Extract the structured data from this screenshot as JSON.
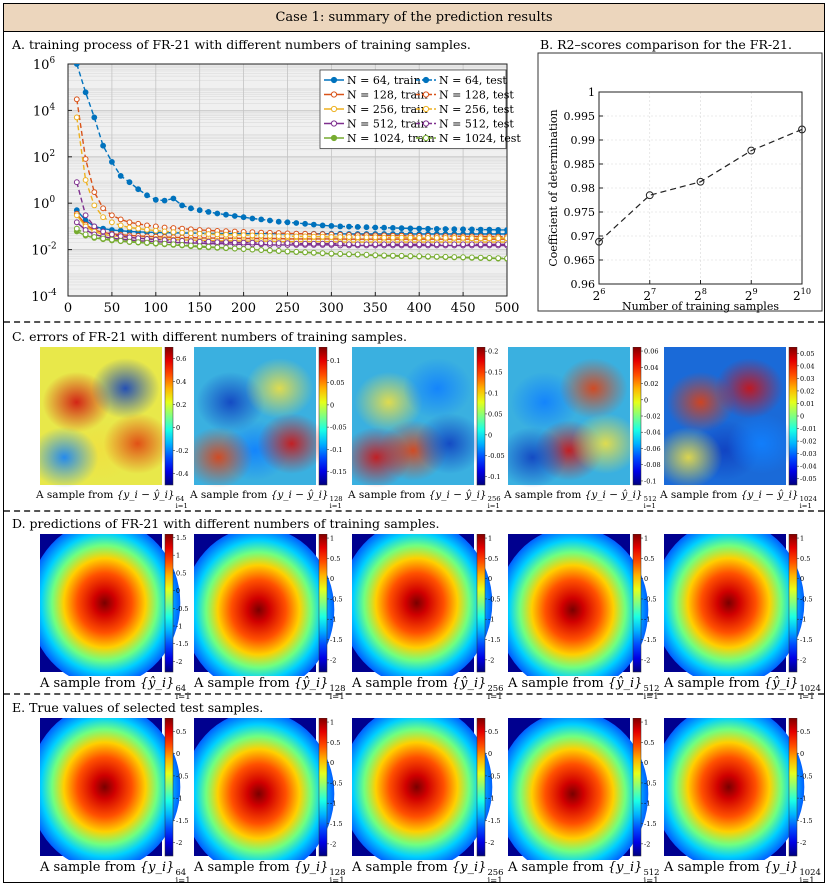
{
  "header": {
    "title": "Case 1: summary of the prediction results"
  },
  "sections": {
    "a": "A. training process of FR-21 with different numbers of training samples.",
    "b": "B. R2–scores comparison for the FR-21.",
    "c": "C. errors of FR-21 with different numbers of training samples.",
    "d": "D. predictions of FR-21 with different numbers of training samples.",
    "e": "E. True values of selected test samples."
  },
  "captions": {
    "prefix": "A sample from",
    "sizes": [
      "64",
      "128",
      "256",
      "512",
      "1024"
    ],
    "index_var": "i=1",
    "c_expr": "{y_i − ŷ_i}",
    "d_expr": "{ŷ_i}",
    "e_expr": "{y_i}"
  },
  "chart_data": [
    {
      "id": "A",
      "type": "line",
      "title": "training process of FR-21 with different numbers of training samples",
      "yscale": "log",
      "xlim": [
        0,
        500
      ],
      "ylim": [
        0.0001,
        1000000.0
      ],
      "xticks": [
        0,
        50,
        100,
        150,
        200,
        250,
        300,
        350,
        400,
        450,
        500
      ],
      "ytick_labels": [
        [
          "10",
          "-4"
        ],
        [
          "10",
          "-2"
        ],
        [
          "10",
          "0"
        ],
        [
          "10",
          "2"
        ],
        [
          "10",
          "4"
        ],
        [
          "10",
          "6"
        ]
      ],
      "ytick_values": [
        0.0001,
        0.01,
        1,
        100.0,
        10000.0,
        1000000.0
      ],
      "grid": true,
      "legend_position": "top-right",
      "x": [
        10,
        20,
        30,
        40,
        50,
        60,
        70,
        80,
        90,
        100,
        110,
        120,
        130,
        140,
        150,
        160,
        170,
        180,
        190,
        200,
        210,
        220,
        230,
        240,
        250,
        260,
        270,
        280,
        290,
        300,
        310,
        320,
        330,
        340,
        350,
        360,
        370,
        380,
        390,
        400,
        410,
        420,
        430,
        440,
        450,
        460,
        470,
        480,
        490,
        500
      ],
      "series": [
        {
          "name": "N = 64, train",
          "style": "solid",
          "color": "#0072bd",
          "marker": "filled",
          "values": [
            0.5,
            0.18,
            0.1,
            0.08,
            0.07,
            0.065,
            0.06,
            0.058,
            0.056,
            0.055,
            0.054,
            0.053,
            0.052,
            0.052,
            0.051,
            0.05,
            0.05,
            0.05,
            0.05,
            0.049,
            0.049,
            0.049,
            0.049,
            0.048,
            0.048,
            0.048,
            0.048,
            0.048,
            0.048,
            0.048,
            0.048,
            0.047,
            0.047,
            0.047,
            0.047,
            0.047,
            0.047,
            0.047,
            0.047,
            0.047,
            0.047,
            0.047,
            0.047,
            0.047,
            0.047,
            0.047,
            0.047,
            0.047,
            0.047,
            0.047
          ]
        },
        {
          "name": "N = 64, test",
          "style": "dashed",
          "color": "#0072bd",
          "marker": "filled",
          "values": [
            1000000,
            60000,
            5000,
            300,
            60,
            15,
            8,
            4,
            2.2,
            1.4,
            1.3,
            1.6,
            0.8,
            0.6,
            0.5,
            0.42,
            0.36,
            0.32,
            0.28,
            0.25,
            0.22,
            0.2,
            0.18,
            0.16,
            0.15,
            0.14,
            0.13,
            0.12,
            0.11,
            0.105,
            0.1,
            0.098,
            0.095,
            0.092,
            0.09,
            0.088,
            0.086,
            0.084,
            0.082,
            0.08,
            0.079,
            0.078,
            0.077,
            0.076,
            0.075,
            0.074,
            0.073,
            0.072,
            0.071,
            0.07
          ]
        },
        {
          "name": "N = 128, train",
          "style": "solid",
          "color": "#d95319",
          "marker": "hollow",
          "values": [
            0.35,
            0.12,
            0.07,
            0.055,
            0.048,
            0.044,
            0.041,
            0.039,
            0.037,
            0.036,
            0.035,
            0.034,
            0.033,
            0.033,
            0.032,
            0.032,
            0.031,
            0.031,
            0.031,
            0.03,
            0.03,
            0.03,
            0.03,
            0.03,
            0.029,
            0.029,
            0.029,
            0.029,
            0.029,
            0.029,
            0.029,
            0.028,
            0.028,
            0.028,
            0.028,
            0.028,
            0.028,
            0.028,
            0.028,
            0.028,
            0.028,
            0.028,
            0.028,
            0.028,
            0.028,
            0.028,
            0.028,
            0.028,
            0.028,
            0.028
          ]
        },
        {
          "name": "N = 128, test",
          "style": "dashed",
          "color": "#d95319",
          "marker": "hollow",
          "values": [
            30000,
            80,
            3,
            0.6,
            0.3,
            0.2,
            0.15,
            0.13,
            0.11,
            0.1,
            0.09,
            0.085,
            0.08,
            0.075,
            0.07,
            0.067,
            0.064,
            0.062,
            0.06,
            0.058,
            0.056,
            0.054,
            0.053,
            0.052,
            0.05,
            0.049,
            0.048,
            0.047,
            0.046,
            0.045,
            0.044,
            0.043,
            0.042,
            0.042,
            0.041,
            0.041,
            0.04,
            0.04,
            0.039,
            0.039,
            0.039,
            0.038,
            0.038,
            0.038,
            0.037,
            0.037,
            0.037,
            0.037,
            0.036,
            0.036
          ]
        },
        {
          "name": "N = 256, train",
          "style": "solid",
          "color": "#edb120",
          "marker": "hollow",
          "values": [
            0.3,
            0.1,
            0.06,
            0.045,
            0.04,
            0.036,
            0.033,
            0.031,
            0.03,
            0.029,
            0.028,
            0.027,
            0.026,
            0.026,
            0.025,
            0.025,
            0.024,
            0.024,
            0.024,
            0.023,
            0.023,
            0.023,
            0.023,
            0.022,
            0.022,
            0.022,
            0.022,
            0.022,
            0.022,
            0.022,
            0.021,
            0.021,
            0.021,
            0.021,
            0.021,
            0.021,
            0.021,
            0.021,
            0.021,
            0.021,
            0.021,
            0.021,
            0.021,
            0.021,
            0.021,
            0.021,
            0.021,
            0.021,
            0.021,
            0.021
          ]
        },
        {
          "name": "N = 256, test",
          "style": "dashed",
          "color": "#edb120",
          "marker": "hollow",
          "values": [
            5000,
            10,
            0.8,
            0.25,
            0.15,
            0.11,
            0.09,
            0.08,
            0.072,
            0.066,
            0.061,
            0.057,
            0.054,
            0.051,
            0.049,
            0.047,
            0.045,
            0.044,
            0.043,
            0.042,
            0.041,
            0.04,
            0.039,
            0.038,
            0.038,
            0.037,
            0.037,
            0.036,
            0.036,
            0.035,
            0.035,
            0.035,
            0.034,
            0.034,
            0.034,
            0.033,
            0.033,
            0.033,
            0.033,
            0.032,
            0.032,
            0.032,
            0.032,
            0.032,
            0.032,
            0.031,
            0.031,
            0.031,
            0.031,
            0.031
          ]
        },
        {
          "name": "N = 512, train",
          "style": "solid",
          "color": "#7e2f8e",
          "marker": "hollow",
          "values": [
            0.15,
            0.07,
            0.045,
            0.036,
            0.031,
            0.028,
            0.026,
            0.024,
            0.023,
            0.022,
            0.021,
            0.02,
            0.02,
            0.019,
            0.019,
            0.018,
            0.018,
            0.018,
            0.017,
            0.017,
            0.017,
            0.017,
            0.016,
            0.016,
            0.016,
            0.016,
            0.016,
            0.016,
            0.016,
            0.016,
            0.015,
            0.015,
            0.015,
            0.015,
            0.015,
            0.015,
            0.015,
            0.015,
            0.015,
            0.015,
            0.015,
            0.015,
            0.015,
            0.015,
            0.015,
            0.015,
            0.015,
            0.015,
            0.015,
            0.015
          ]
        },
        {
          "name": "N = 512, test",
          "style": "dashed",
          "color": "#7e2f8e",
          "marker": "hollow",
          "values": [
            8,
            0.3,
            0.1,
            0.06,
            0.045,
            0.038,
            0.034,
            0.031,
            0.029,
            0.027,
            0.026,
            0.025,
            0.024,
            0.023,
            0.022,
            0.022,
            0.021,
            0.021,
            0.02,
            0.02,
            0.02,
            0.019,
            0.019,
            0.019,
            0.019,
            0.018,
            0.018,
            0.018,
            0.018,
            0.018,
            0.018,
            0.017,
            0.017,
            0.017,
            0.017,
            0.017,
            0.017,
            0.017,
            0.017,
            0.017,
            0.017,
            0.017,
            0.017,
            0.017,
            0.017,
            0.017,
            0.017,
            0.017,
            0.017,
            0.017
          ]
        },
        {
          "name": "N = 1024, train",
          "style": "solid",
          "color": "#77ac30",
          "marker": "filled",
          "values": [
            0.06,
            0.04,
            0.032,
            0.028,
            0.025,
            0.023,
            0.021,
            0.02,
            0.019,
            0.018,
            0.017,
            0.016,
            0.015,
            0.014,
            0.013,
            0.0125,
            0.012,
            0.0115,
            0.011,
            0.0105,
            0.01,
            0.0095,
            0.009,
            0.0086,
            0.0082,
            0.0078,
            0.0075,
            0.0072,
            0.0069,
            0.0066,
            0.0064,
            0.0062,
            0.006,
            0.0058,
            0.0056,
            0.0054,
            0.0053,
            0.0052,
            0.0051,
            0.005,
            0.0049,
            0.0048,
            0.0047,
            0.0046,
            0.0045,
            0.0044,
            0.0043,
            0.0042,
            0.0041,
            0.004
          ]
        },
        {
          "name": "N = 1024, test",
          "style": "dashed",
          "color": "#77ac30",
          "marker": "hollow",
          "values": [
            0.08,
            0.045,
            0.035,
            0.03,
            0.027,
            0.024,
            0.022,
            0.021,
            0.02,
            0.019,
            0.018,
            0.017,
            0.016,
            0.015,
            0.014,
            0.0132,
            0.0125,
            0.0118,
            0.0112,
            0.0106,
            0.0101,
            0.0096,
            0.0092,
            0.0088,
            0.0084,
            0.008,
            0.0077,
            0.0074,
            0.0071,
            0.0068,
            0.0066,
            0.0064,
            0.0062,
            0.006,
            0.0058,
            0.0056,
            0.0055,
            0.0054,
            0.0053,
            0.0052,
            0.0051,
            0.005,
            0.0049,
            0.0048,
            0.0047,
            0.0046,
            0.0045,
            0.0044,
            0.0043,
            0.0042
          ]
        }
      ]
    },
    {
      "id": "B",
      "type": "line",
      "title": "R2–scores comparison for the FR-21",
      "xlabel": "Number of training samples",
      "ylabel": "Coefficient of determination",
      "xtick_labels": [
        [
          "2",
          "6"
        ],
        [
          "2",
          "7"
        ],
        [
          "2",
          "8"
        ],
        [
          "2",
          "9"
        ],
        [
          "2",
          "10"
        ]
      ],
      "categories": [
        "64",
        "128",
        "256",
        "512",
        "1024"
      ],
      "values": [
        0.9688,
        0.9785,
        0.9813,
        0.9878,
        0.9922
      ],
      "ylim": [
        0.96,
        1
      ],
      "yticks": [
        "0.96",
        "0.965",
        "0.97",
        "0.975",
        "0.98",
        "0.985",
        "0.99",
        "0.995",
        "1"
      ],
      "grid": true
    },
    {
      "id": "C",
      "type": "heatmap",
      "colorbars": [
        {
          "ticks": [
            "0.6",
            "0.4",
            "0.2",
            "0",
            "-0.2",
            "-0.4"
          ],
          "min": -0.5,
          "max": 0.7
        },
        {
          "ticks": [
            "0.1",
            "0.05",
            "0",
            "-0.05",
            "-0.1",
            "-0.15"
          ],
          "min": -0.18,
          "max": 0.13
        },
        {
          "ticks": [
            "0.2",
            "0.15",
            "0.1",
            "0.05",
            "0",
            "-0.05",
            "-0.1"
          ],
          "min": -0.12,
          "max": 0.21
        },
        {
          "ticks": [
            "0.06",
            "0.04",
            "0.02",
            "0",
            "-0.02",
            "-0.04",
            "-0.06",
            "-0.08",
            "-0.1"
          ],
          "min": -0.105,
          "max": 0.065
        },
        {
          "ticks": [
            "0.05",
            "0.04",
            "0.03",
            "0.02",
            "0.01",
            "0",
            "-0.01",
            "-0.02",
            "-0.03",
            "-0.04",
            "-0.05"
          ],
          "min": -0.055,
          "max": 0.055
        }
      ]
    },
    {
      "id": "D",
      "type": "heatmap",
      "colorbars": [
        {
          "ticks": [
            "1.5",
            "1",
            "0.5",
            "0",
            "-0.5",
            "-1",
            "-1.5",
            "-2"
          ],
          "min": -2.3,
          "max": 1.6
        },
        {
          "ticks": [
            "1",
            "0.5",
            "0",
            "-0.5",
            "-1",
            "-1.5",
            "-2"
          ],
          "min": -2.3,
          "max": 1.1
        },
        {
          "ticks": [
            "1",
            "0.5",
            "0",
            "-0.5",
            "-1",
            "-1.5",
            "-2"
          ],
          "min": -2.3,
          "max": 1.1
        },
        {
          "ticks": [
            "1",
            "0.5",
            "0",
            "-0.5",
            "-1",
            "-1.5",
            "-2"
          ],
          "min": -2.3,
          "max": 1.1
        },
        {
          "ticks": [
            "1",
            "0.5",
            "0",
            "-0.5",
            "-1",
            "-1.5",
            "-2"
          ],
          "min": -2.3,
          "max": 1.1
        }
      ]
    },
    {
      "id": "E",
      "type": "heatmap",
      "colorbars": [
        {
          "ticks": [
            "0.5",
            "0",
            "-0.5",
            "-1",
            "-1.5",
            "-2"
          ],
          "min": -2.3,
          "max": 0.8
        },
        {
          "ticks": [
            "1",
            "0.5",
            "0",
            "-0.5",
            "-1",
            "-1.5",
            "-2"
          ],
          "min": -2.3,
          "max": 1.1
        },
        {
          "ticks": [
            "0.5",
            "0",
            "-0.5",
            "-1",
            "-1.5",
            "-2"
          ],
          "min": -2.3,
          "max": 0.8
        },
        {
          "ticks": [
            "1",
            "0.5",
            "0",
            "-0.5",
            "-1",
            "-1.5",
            "-2"
          ],
          "min": -2.3,
          "max": 1.1
        },
        {
          "ticks": [
            "0.5",
            "0",
            "-0.5",
            "-1",
            "-1.5",
            "-2"
          ],
          "min": -2.3,
          "max": 0.8
        }
      ]
    }
  ]
}
